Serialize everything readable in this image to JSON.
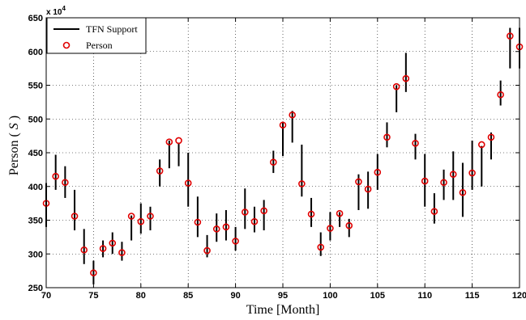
{
  "chart_data": {
    "type": "scatter",
    "xlabel": "Time [Month]",
    "ylabel_main": "Person ( ",
    "ylabel_var": "S",
    "ylabel_end": " )",
    "y_multiplier": "x 10",
    "y_multiplier_exp": "4",
    "xlim": [
      70,
      120
    ],
    "ylim": [
      250,
      650
    ],
    "xticks": [
      70,
      75,
      80,
      85,
      90,
      95,
      100,
      105,
      110,
      115,
      120
    ],
    "yticks": [
      250,
      300,
      350,
      400,
      450,
      500,
      550,
      600,
      650
    ],
    "grid": true,
    "legend_position": "top-left",
    "colors": {
      "support": "#000000",
      "person": "#e00000"
    },
    "series": [
      {
        "name": "TFN Support",
        "kind": "interval",
        "x": [
          70,
          71,
          72,
          73,
          74,
          75,
          76,
          77,
          78,
          79,
          80,
          81,
          82,
          83,
          84,
          85,
          86,
          87,
          88,
          89,
          90,
          91,
          92,
          93,
          94,
          95,
          96,
          97,
          98,
          99,
          100,
          101,
          102,
          103,
          104,
          105,
          106,
          107,
          108,
          109,
          110,
          111,
          112,
          113,
          114,
          115,
          116,
          117,
          118,
          119,
          120
        ],
        "low": [
          340,
          395,
          383,
          335,
          285,
          255,
          295,
          300,
          290,
          320,
          330,
          335,
          400,
          427,
          430,
          370,
          325,
          295,
          318,
          320,
          305,
          337,
          332,
          335,
          420,
          445,
          465,
          385,
          340,
          297,
          320,
          340,
          325,
          365,
          367,
          395,
          458,
          510,
          540,
          440,
          370,
          345,
          380,
          380,
          355,
          395,
          400,
          440,
          520,
          575,
          575
        ],
        "high": [
          405,
          447,
          430,
          395,
          337,
          290,
          320,
          332,
          318,
          357,
          375,
          370,
          440,
          468,
          465,
          450,
          385,
          328,
          360,
          365,
          340,
          397,
          370,
          380,
          453,
          495,
          512,
          462,
          383,
          332,
          362,
          362,
          352,
          418,
          422,
          448,
          495,
          550,
          598,
          478,
          448,
          390,
          425,
          452,
          435,
          468,
          460,
          480,
          557,
          635,
          635
        ]
      },
      {
        "name": "Person",
        "kind": "marker",
        "x": [
          70,
          71,
          72,
          73,
          74,
          75,
          76,
          77,
          78,
          79,
          80,
          81,
          82,
          83,
          84,
          85,
          86,
          87,
          88,
          89,
          90,
          91,
          92,
          93,
          94,
          95,
          96,
          97,
          98,
          99,
          100,
          101,
          102,
          103,
          104,
          105,
          106,
          107,
          108,
          109,
          110,
          111,
          112,
          113,
          114,
          115,
          116,
          117,
          118,
          119,
          120
        ],
        "values": [
          375,
          415,
          406,
          356,
          306,
          272,
          308,
          316,
          302,
          356,
          348,
          356,
          423,
          466,
          468,
          405,
          347,
          305,
          337,
          340,
          319,
          362,
          348,
          364,
          436,
          491,
          506,
          404,
          359,
          310,
          338,
          360,
          342,
          407,
          396,
          421,
          473,
          548,
          560,
          464,
          408,
          363,
          406,
          418,
          391,
          420,
          462,
          473,
          536,
          623,
          607
        ]
      }
    ]
  }
}
